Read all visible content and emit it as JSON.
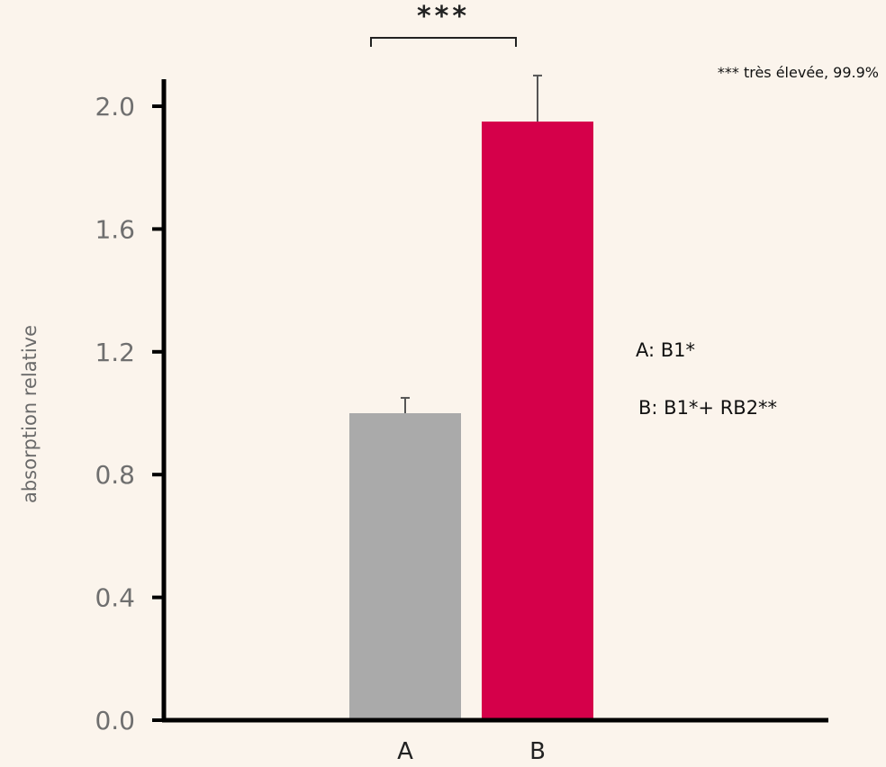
{
  "chart_data": {
    "type": "bar",
    "categories": [
      "A",
      "B"
    ],
    "values": [
      1.0,
      1.95
    ],
    "errors": [
      0.05,
      0.15
    ],
    "colors": [
      "#aaaaaa",
      "#d5004a"
    ],
    "ylabel": "absorption relative",
    "xlabel": "",
    "ylim": [
      0.0,
      2.0
    ],
    "yticks": [
      "0.0",
      "0.4",
      "0.8",
      "1.2",
      "1.6",
      "2.0"
    ],
    "ytick_values": [
      0.0,
      0.4,
      0.8,
      1.2,
      1.6,
      2.0
    ],
    "grid": false,
    "legend_text": [
      "A: B1*",
      "B: B1*+ RB2**"
    ],
    "significance": {
      "stars": "***",
      "between": [
        "A",
        "B"
      ],
      "note": "*** très élevée, 99.9%"
    }
  }
}
